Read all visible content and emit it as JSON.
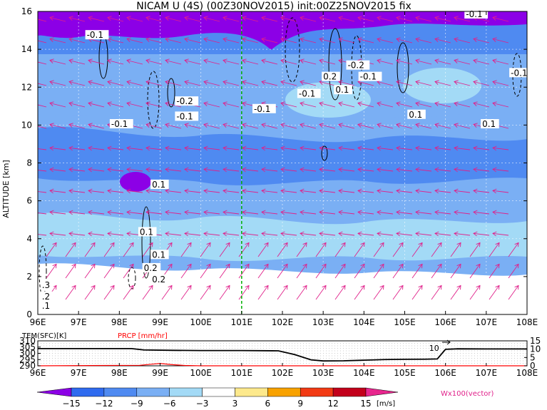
{
  "title": "NICAM U (4S) (00Z30NOV2015) init:00Z25NOV2015 fix",
  "chart_data": [
    {
      "type": "heatmap",
      "panel": "main",
      "variable": "U",
      "ylabel": "ALTITUDE [km]",
      "xlim": [
        96,
        108
      ],
      "ylim": [
        0,
        16
      ],
      "x_ticks": [
        "96E",
        "97E",
        "98E",
        "99E",
        "100E",
        "101E",
        "102E",
        "103E",
        "104E",
        "105E",
        "106E",
        "107E",
        "108E"
      ],
      "y_ticks": [
        "0",
        "2",
        "4",
        "6",
        "8",
        "10",
        "12",
        "14",
        "16"
      ],
      "marker_line_lon": 101,
      "marker_line_color": "#00b000",
      "contour_labels": [
        {
          "text": "-0.1",
          "lon": 97.2,
          "alt": 14.6
        },
        {
          "text": "-0.2",
          "lon": 99.4,
          "alt": 11.1
        },
        {
          "text": "-0.1",
          "lon": 99.4,
          "alt": 10.3
        },
        {
          "text": "-0.1",
          "lon": 97.8,
          "alt": 9.9
        },
        {
          "text": "-0.1",
          "lon": 101.3,
          "alt": 10.7
        },
        {
          "text": "-0.1",
          "lon": 102.4,
          "alt": 11.5
        },
        {
          "text": "0.2",
          "lon": 103.0,
          "alt": 12.4
        },
        {
          "text": "0.1",
          "lon": 103.3,
          "alt": 11.7
        },
        {
          "text": "-0.2",
          "lon": 103.6,
          "alt": 13.0
        },
        {
          "text": "-0.1",
          "lon": 103.9,
          "alt": 12.4
        },
        {
          "text": "0.1",
          "lon": 105.1,
          "alt": 10.4
        },
        {
          "text": "-0.1",
          "lon": 106.5,
          "alt": 15.7
        },
        {
          "text": "-0.1",
          "lon": 107.6,
          "alt": 12.6
        },
        {
          "text": "0.1",
          "lon": 106.9,
          "alt": 9.9
        },
        {
          "text": "0.1",
          "lon": 98.8,
          "alt": 6.7
        },
        {
          "text": "0.1",
          "lon": 98.5,
          "alt": 4.2
        },
        {
          "text": "0.2",
          "lon": 98.8,
          "alt": 1.7
        },
        {
          "text": "0.1",
          "lon": 98.8,
          "alt": 3.0
        },
        {
          "text": "0.2",
          "lon": 98.6,
          "alt": 2.3
        },
        {
          "text": ".3",
          "lon": 96.1,
          "alt": 1.4
        },
        {
          "text": ".2",
          "lon": 96.1,
          "alt": 0.8
        },
        {
          "text": ".1",
          "lon": 96.1,
          "alt": 0.3
        }
      ]
    },
    {
      "type": "line",
      "panel": "surface",
      "xlim": [
        96,
        108
      ],
      "left_label": "TEM(SFC)[K]",
      "right_label": "PRCP [mm/hr]",
      "left_ticks": [
        "290",
        "295",
        "300",
        "305",
        "310"
      ],
      "left_ylim": [
        290,
        310
      ],
      "right_ticks": [
        "0",
        "5",
        "10",
        "15"
      ],
      "right_ylim": [
        0,
        15
      ],
      "annotation": "10",
      "series": [
        {
          "name": "TEM(SFC)[K]",
          "color": "#000000",
          "x": [
            96,
            98.3,
            98.6,
            99.3,
            100,
            101,
            101.9,
            102.3,
            102.7,
            103,
            103.5,
            104,
            104.5,
            105,
            105.5,
            105.8,
            106,
            106.3,
            107,
            108
          ],
          "y": [
            303.8,
            303.8,
            302.7,
            302.4,
            302.2,
            302.2,
            302.0,
            299.0,
            294.8,
            293.9,
            294.0,
            294.5,
            295.0,
            295.2,
            295.3,
            295.5,
            303.2,
            303.6,
            303.5,
            303.5
          ]
        },
        {
          "name": "PRCP [mm/hr]",
          "color": "#ff0000",
          "x": [
            96,
            98.5,
            98.8,
            99.0,
            99.3,
            99.6,
            100,
            108
          ],
          "y": [
            0,
            0.3,
            1.0,
            1.4,
            0.7,
            0.2,
            0,
            0
          ]
        }
      ]
    },
    {
      "type": "colorbar",
      "tick_labels": [
        "−15",
        "−12",
        "−9",
        "−6",
        "−3",
        "3",
        "6",
        "9",
        "12",
        "15"
      ],
      "colors": [
        "#8c00e6",
        "#2f6bef",
        "#4f8af1",
        "#7aaff4",
        "#a3daf6",
        "#ffffff",
        "#fde98c",
        "#f8a200",
        "#f23a14",
        "#c3001b",
        "#e8268e"
      ],
      "unit": "[m/s]",
      "vector_note": "Wx100(vector)"
    }
  ]
}
